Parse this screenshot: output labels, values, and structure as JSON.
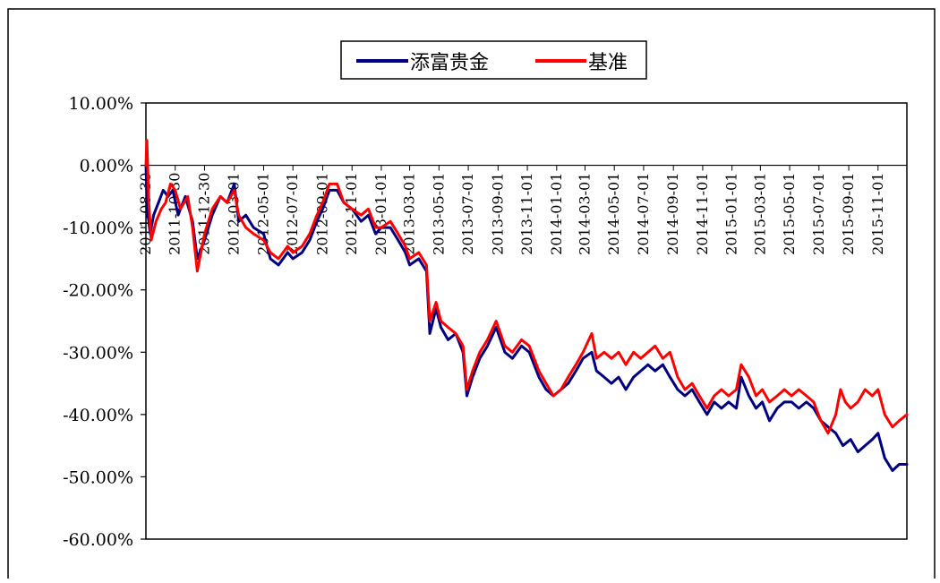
{
  "chart_data": {
    "type": "line",
    "title": "",
    "xlabel": "",
    "ylabel": "",
    "ylim": [
      -0.6,
      0.1
    ],
    "y_ticks": [
      "10.00%",
      "0.00%",
      "-10.00%",
      "-20.00%",
      "-30.00%",
      "-40.00%",
      "-50.00%",
      "-60.00%"
    ],
    "x_ticks": [
      "2011-08-30",
      "2011-10-30",
      "2011-12-30",
      "2012-03-01",
      "2012-05-01",
      "2012-07-01",
      "2012-09-01",
      "2012-11-01",
      "2013-01-01",
      "2013-03-01",
      "2013-05-01",
      "2013-07-01",
      "2013-09-01",
      "2013-11-01",
      "2014-01-01",
      "2014-03-01",
      "2014-05-01",
      "2014-07-01",
      "2014-09-01",
      "2014-11-01",
      "2015-01-01",
      "2015-03-01",
      "2015-05-01",
      "2015-07-01",
      "2015-09-01",
      "2015-11-01"
    ],
    "x_range": [
      "2011-08-30",
      "2015-12-31"
    ],
    "grid": false,
    "legend_position": "top-center",
    "series": [
      {
        "name": "添富贵金",
        "color": "#000080",
        "points": [
          [
            "2011-08-30",
            0.0
          ],
          [
            "2011-09-02",
            -0.07
          ],
          [
            "2011-09-08",
            -0.11
          ],
          [
            "2011-09-15",
            -0.08
          ],
          [
            "2011-09-25",
            -0.06
          ],
          [
            "2011-10-05",
            -0.04
          ],
          [
            "2011-10-15",
            -0.05
          ],
          [
            "2011-10-25",
            -0.04
          ],
          [
            "2011-11-05",
            -0.08
          ],
          [
            "2011-11-20",
            -0.05
          ],
          [
            "2011-12-05",
            -0.09
          ],
          [
            "2011-12-15",
            -0.15
          ],
          [
            "2011-12-30",
            -0.12
          ],
          [
            "2012-01-15",
            -0.08
          ],
          [
            "2012-02-01",
            -0.05
          ],
          [
            "2012-02-15",
            -0.06
          ],
          [
            "2012-03-01",
            -0.03
          ],
          [
            "2012-03-10",
            -0.09
          ],
          [
            "2012-03-25",
            -0.08
          ],
          [
            "2012-04-10",
            -0.1
          ],
          [
            "2012-05-01",
            -0.11
          ],
          [
            "2012-05-15",
            -0.15
          ],
          [
            "2012-06-01",
            -0.16
          ],
          [
            "2012-06-20",
            -0.14
          ],
          [
            "2012-07-01",
            -0.15
          ],
          [
            "2012-07-20",
            -0.14
          ],
          [
            "2012-08-05",
            -0.12
          ],
          [
            "2012-08-20",
            -0.09
          ],
          [
            "2012-09-01",
            -0.07
          ],
          [
            "2012-09-15",
            -0.04
          ],
          [
            "2012-10-01",
            -0.04
          ],
          [
            "2012-10-15",
            -0.06
          ],
          [
            "2012-11-01",
            -0.07
          ],
          [
            "2012-11-20",
            -0.09
          ],
          [
            "2012-12-05",
            -0.08
          ],
          [
            "2012-12-20",
            -0.11
          ],
          [
            "2013-01-01",
            -0.1
          ],
          [
            "2013-01-20",
            -0.1
          ],
          [
            "2013-02-05",
            -0.12
          ],
          [
            "2013-02-20",
            -0.14
          ],
          [
            "2013-03-01",
            -0.16
          ],
          [
            "2013-03-20",
            -0.15
          ],
          [
            "2013-04-05",
            -0.17
          ],
          [
            "2013-04-12",
            -0.27
          ],
          [
            "2013-04-25",
            -0.23
          ],
          [
            "2013-05-05",
            -0.26
          ],
          [
            "2013-05-20",
            -0.28
          ],
          [
            "2013-06-05",
            -0.27
          ],
          [
            "2013-06-20",
            -0.3
          ],
          [
            "2013-06-28",
            -0.37
          ],
          [
            "2013-07-10",
            -0.34
          ],
          [
            "2013-07-25",
            -0.31
          ],
          [
            "2013-08-10",
            -0.29
          ],
          [
            "2013-08-28",
            -0.26
          ],
          [
            "2013-09-15",
            -0.3
          ],
          [
            "2013-10-01",
            -0.31
          ],
          [
            "2013-10-20",
            -0.29
          ],
          [
            "2013-11-05",
            -0.3
          ],
          [
            "2013-11-25",
            -0.34
          ],
          [
            "2013-12-10",
            -0.36
          ],
          [
            "2013-12-25",
            -0.37
          ],
          [
            "2014-01-10",
            -0.36
          ],
          [
            "2014-01-25",
            -0.35
          ],
          [
            "2014-02-10",
            -0.33
          ],
          [
            "2014-02-25",
            -0.31
          ],
          [
            "2014-03-15",
            -0.3
          ],
          [
            "2014-03-25",
            -0.33
          ],
          [
            "2014-04-10",
            -0.34
          ],
          [
            "2014-04-25",
            -0.35
          ],
          [
            "2014-05-10",
            -0.34
          ],
          [
            "2014-05-25",
            -0.36
          ],
          [
            "2014-06-10",
            -0.34
          ],
          [
            "2014-06-25",
            -0.33
          ],
          [
            "2014-07-10",
            -0.32
          ],
          [
            "2014-07-25",
            -0.33
          ],
          [
            "2014-08-10",
            -0.32
          ],
          [
            "2014-08-25",
            -0.34
          ],
          [
            "2014-09-10",
            -0.36
          ],
          [
            "2014-09-25",
            -0.37
          ],
          [
            "2014-10-10",
            -0.36
          ],
          [
            "2014-10-25",
            -0.38
          ],
          [
            "2014-11-10",
            -0.4
          ],
          [
            "2014-11-25",
            -0.38
          ],
          [
            "2014-12-10",
            -0.39
          ],
          [
            "2014-12-25",
            -0.38
          ],
          [
            "2015-01-10",
            -0.39
          ],
          [
            "2015-01-20",
            -0.34
          ],
          [
            "2015-02-05",
            -0.37
          ],
          [
            "2015-02-20",
            -0.39
          ],
          [
            "2015-03-05",
            -0.38
          ],
          [
            "2015-03-20",
            -0.41
          ],
          [
            "2015-04-05",
            -0.39
          ],
          [
            "2015-04-20",
            -0.38
          ],
          [
            "2015-05-05",
            -0.38
          ],
          [
            "2015-05-20",
            -0.39
          ],
          [
            "2015-06-05",
            -0.38
          ],
          [
            "2015-06-20",
            -0.39
          ],
          [
            "2015-07-05",
            -0.41
          ],
          [
            "2015-07-20",
            -0.42
          ],
          [
            "2015-08-05",
            -0.43
          ],
          [
            "2015-08-20",
            -0.45
          ],
          [
            "2015-09-05",
            -0.44
          ],
          [
            "2015-09-20",
            -0.46
          ],
          [
            "2015-10-05",
            -0.45
          ],
          [
            "2015-10-20",
            -0.44
          ],
          [
            "2015-11-01",
            -0.43
          ],
          [
            "2015-11-15",
            -0.47
          ],
          [
            "2015-12-01",
            -0.49
          ],
          [
            "2015-12-15",
            -0.48
          ],
          [
            "2015-12-31",
            -0.48
          ]
        ]
      },
      {
        "name": "基准",
        "color": "#ff0000",
        "points": [
          [
            "2011-08-30",
            0.0
          ],
          [
            "2011-09-01",
            0.04
          ],
          [
            "2011-09-05",
            -0.06
          ],
          [
            "2011-09-10",
            -0.12
          ],
          [
            "2011-09-20",
            -0.09
          ],
          [
            "2011-10-01",
            -0.07
          ],
          [
            "2011-10-10",
            -0.06
          ],
          [
            "2011-10-20",
            -0.03
          ],
          [
            "2011-10-30",
            -0.04
          ],
          [
            "2011-11-10",
            -0.07
          ],
          [
            "2011-11-25",
            -0.05
          ],
          [
            "2011-12-05",
            -0.1
          ],
          [
            "2011-12-15",
            -0.17
          ],
          [
            "2011-12-30",
            -0.11
          ],
          [
            "2012-01-15",
            -0.07
          ],
          [
            "2012-02-01",
            -0.05
          ],
          [
            "2012-02-15",
            -0.06
          ],
          [
            "2012-03-01",
            -0.04
          ],
          [
            "2012-03-10",
            -0.08
          ],
          [
            "2012-03-25",
            -0.1
          ],
          [
            "2012-04-10",
            -0.11
          ],
          [
            "2012-05-01",
            -0.12
          ],
          [
            "2012-05-15",
            -0.14
          ],
          [
            "2012-06-01",
            -0.15
          ],
          [
            "2012-06-20",
            -0.13
          ],
          [
            "2012-07-01",
            -0.14
          ],
          [
            "2012-07-20",
            -0.13
          ],
          [
            "2012-08-05",
            -0.11
          ],
          [
            "2012-08-20",
            -0.08
          ],
          [
            "2012-09-01",
            -0.06
          ],
          [
            "2012-09-15",
            -0.03
          ],
          [
            "2012-10-01",
            -0.03
          ],
          [
            "2012-10-15",
            -0.06
          ],
          [
            "2012-11-01",
            -0.07
          ],
          [
            "2012-11-20",
            -0.08
          ],
          [
            "2012-12-05",
            -0.07
          ],
          [
            "2012-12-20",
            -0.1
          ],
          [
            "2013-01-01",
            -0.1
          ],
          [
            "2013-01-20",
            -0.09
          ],
          [
            "2013-02-05",
            -0.11
          ],
          [
            "2013-02-20",
            -0.13
          ],
          [
            "2013-03-01",
            -0.15
          ],
          [
            "2013-03-20",
            -0.14
          ],
          [
            "2013-04-05",
            -0.16
          ],
          [
            "2013-04-12",
            -0.25
          ],
          [
            "2013-04-25",
            -0.22
          ],
          [
            "2013-05-05",
            -0.25
          ],
          [
            "2013-05-20",
            -0.26
          ],
          [
            "2013-06-05",
            -0.27
          ],
          [
            "2013-06-20",
            -0.29
          ],
          [
            "2013-06-28",
            -0.36
          ],
          [
            "2013-07-10",
            -0.33
          ],
          [
            "2013-07-25",
            -0.3
          ],
          [
            "2013-08-10",
            -0.28
          ],
          [
            "2013-08-28",
            -0.25
          ],
          [
            "2013-09-15",
            -0.29
          ],
          [
            "2013-10-01",
            -0.3
          ],
          [
            "2013-10-20",
            -0.28
          ],
          [
            "2013-11-05",
            -0.29
          ],
          [
            "2013-11-25",
            -0.33
          ],
          [
            "2013-12-10",
            -0.35
          ],
          [
            "2013-12-25",
            -0.37
          ],
          [
            "2014-01-10",
            -0.36
          ],
          [
            "2014-01-25",
            -0.34
          ],
          [
            "2014-02-10",
            -0.32
          ],
          [
            "2014-02-25",
            -0.3
          ],
          [
            "2014-03-15",
            -0.27
          ],
          [
            "2014-03-25",
            -0.31
          ],
          [
            "2014-04-10",
            -0.3
          ],
          [
            "2014-04-25",
            -0.31
          ],
          [
            "2014-05-10",
            -0.3
          ],
          [
            "2014-05-25",
            -0.32
          ],
          [
            "2014-06-10",
            -0.3
          ],
          [
            "2014-06-25",
            -0.31
          ],
          [
            "2014-07-10",
            -0.3
          ],
          [
            "2014-07-25",
            -0.29
          ],
          [
            "2014-08-10",
            -0.31
          ],
          [
            "2014-08-25",
            -0.3
          ],
          [
            "2014-09-10",
            -0.34
          ],
          [
            "2014-09-25",
            -0.36
          ],
          [
            "2014-10-10",
            -0.35
          ],
          [
            "2014-10-25",
            -0.37
          ],
          [
            "2014-11-10",
            -0.39
          ],
          [
            "2014-11-25",
            -0.37
          ],
          [
            "2014-12-10",
            -0.36
          ],
          [
            "2014-12-25",
            -0.37
          ],
          [
            "2015-01-10",
            -0.36
          ],
          [
            "2015-01-20",
            -0.32
          ],
          [
            "2015-02-05",
            -0.34
          ],
          [
            "2015-02-20",
            -0.37
          ],
          [
            "2015-03-05",
            -0.36
          ],
          [
            "2015-03-20",
            -0.38
          ],
          [
            "2015-04-05",
            -0.37
          ],
          [
            "2015-04-20",
            -0.36
          ],
          [
            "2015-05-05",
            -0.37
          ],
          [
            "2015-05-20",
            -0.36
          ],
          [
            "2015-06-05",
            -0.37
          ],
          [
            "2015-06-20",
            -0.38
          ],
          [
            "2015-07-05",
            -0.41
          ],
          [
            "2015-07-20",
            -0.43
          ],
          [
            "2015-08-05",
            -0.4
          ],
          [
            "2015-08-15",
            -0.36
          ],
          [
            "2015-08-25",
            -0.38
          ],
          [
            "2015-09-05",
            -0.39
          ],
          [
            "2015-09-20",
            -0.38
          ],
          [
            "2015-10-05",
            -0.36
          ],
          [
            "2015-10-20",
            -0.37
          ],
          [
            "2015-11-01",
            -0.36
          ],
          [
            "2015-11-15",
            -0.4
          ],
          [
            "2015-12-01",
            -0.42
          ],
          [
            "2015-12-15",
            -0.41
          ],
          [
            "2015-12-31",
            -0.4
          ]
        ]
      }
    ]
  }
}
